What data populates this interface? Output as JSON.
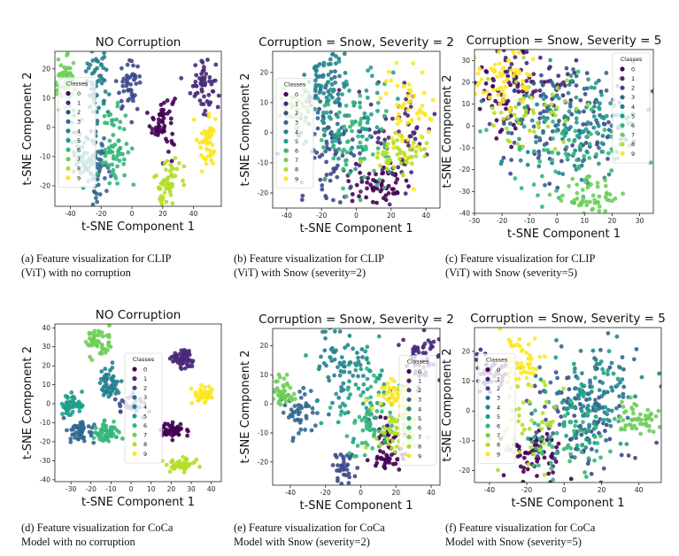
{
  "palette": [
    "#440154",
    "#482878",
    "#3e4989",
    "#31688e",
    "#26828e",
    "#1f9e89",
    "#35b779",
    "#6ece58",
    "#b5de2b",
    "#fde725"
  ],
  "legend_title": "Classes",
  "chart_data": [
    {
      "type": "scatter",
      "title": "NO Corruption",
      "xlabel": "t-SNE Component 1",
      "ylabel": "t-SNE Component 2",
      "xlim": [
        -50,
        58
      ],
      "ylim": [
        -27,
        26
      ],
      "xticks": [
        -40,
        -20,
        0,
        20,
        40
      ],
      "yticks": [
        -20,
        -10,
        0,
        10,
        20
      ],
      "legend_loc": "center-left",
      "clusters": [
        {
          "class": 0,
          "cx": 20,
          "cy": 2,
          "sx": 4,
          "sy": 5,
          "n": 55
        },
        {
          "class": 1,
          "cx": 46,
          "cy": 15,
          "sx": 4,
          "sy": 5,
          "n": 55
        },
        {
          "class": 2,
          "cx": -2,
          "cy": 14,
          "sx": 4,
          "sy": 4,
          "n": 45
        },
        {
          "class": 3,
          "cx": -22,
          "cy": -14,
          "sx": 4,
          "sy": 7,
          "n": 60
        },
        {
          "class": 4,
          "cx": -23,
          "cy": 15,
          "sx": 4,
          "sy": 6,
          "n": 60
        },
        {
          "class": 5,
          "cx": -33,
          "cy": -6,
          "sx": 4,
          "sy": 6,
          "n": 50
        },
        {
          "class": 6,
          "cx": -11,
          "cy": -7,
          "sx": 4,
          "sy": 7,
          "n": 60
        },
        {
          "class": 7,
          "cx": -43,
          "cy": 15,
          "sx": 4,
          "sy": 4,
          "n": 55
        },
        {
          "class": 8,
          "cx": 23,
          "cy": -19,
          "sx": 4,
          "sy": 5,
          "n": 55
        },
        {
          "class": 9,
          "cx": 49,
          "cy": -4,
          "sx": 3,
          "sy": 5,
          "n": 50
        }
      ],
      "caption": [
        "(a) Feature visualization for CLIP",
        "(ViT) with no corruption"
      ]
    },
    {
      "type": "scatter",
      "title": "Corruption = Snow, Severity = 2",
      "xlabel": "t-SNE Component 1",
      "ylabel": "t-SNE Component 2",
      "xlim": [
        -48,
        48
      ],
      "ylim": [
        -25,
        27
      ],
      "xticks": [
        -40,
        -20,
        0,
        20,
        40
      ],
      "yticks": [
        -20,
        -10,
        0,
        10,
        20
      ],
      "legend_loc": "center-left",
      "clusters": [
        {
          "class": 0,
          "cx": 15,
          "cy": -17,
          "sx": 8,
          "sy": 3,
          "n": 55
        },
        {
          "class": 1,
          "cx": 22,
          "cy": -2,
          "sx": 12,
          "sy": 9,
          "n": 70
        },
        {
          "class": 2,
          "cx": -14,
          "cy": -8,
          "sx": 10,
          "sy": 8,
          "n": 60
        },
        {
          "class": 3,
          "cx": -20,
          "cy": 6,
          "sx": 10,
          "sy": 8,
          "n": 60
        },
        {
          "class": 4,
          "cx": -18,
          "cy": 18,
          "sx": 6,
          "sy": 5,
          "n": 55
        },
        {
          "class": 5,
          "cx": -5,
          "cy": 6,
          "sx": 12,
          "sy": 9,
          "n": 65
        },
        {
          "class": 6,
          "cx": 0,
          "cy": -4,
          "sx": 12,
          "sy": 8,
          "n": 60
        },
        {
          "class": 7,
          "cx": -35,
          "cy": 8,
          "sx": 5,
          "sy": 3,
          "n": 35
        },
        {
          "class": 8,
          "cx": 25,
          "cy": -7,
          "sx": 8,
          "sy": 4,
          "n": 55
        },
        {
          "class": 9,
          "cx": 30,
          "cy": 7,
          "sx": 8,
          "sy": 7,
          "n": 60
        }
      ],
      "caption": [
        "(b) Feature visualization for CLIP",
        "(ViT) with Snow (severity=2)"
      ]
    },
    {
      "type": "scatter",
      "title": "Corruption = Snow, Severity = 5",
      "xlabel": "t-SNE Component 1",
      "ylabel": "t-SNE Component 2",
      "xlim": [
        -30,
        35
      ],
      "ylim": [
        -40,
        35
      ],
      "xticks": [
        -30,
        -20,
        -10,
        0,
        10,
        20,
        30
      ],
      "yticks": [
        -40,
        -30,
        -20,
        -10,
        0,
        10,
        20,
        30
      ],
      "legend_loc": "top-right",
      "clusters": [
        {
          "class": 0,
          "cx": -18,
          "cy": 15,
          "sx": 6,
          "sy": 10,
          "n": 60
        },
        {
          "class": 1,
          "cx": -5,
          "cy": 20,
          "sx": 10,
          "sy": 8,
          "n": 60
        },
        {
          "class": 2,
          "cx": 0,
          "cy": 0,
          "sx": 13,
          "sy": 13,
          "n": 70
        },
        {
          "class": 3,
          "cx": 10,
          "cy": 5,
          "sx": 12,
          "sy": 12,
          "n": 65
        },
        {
          "class": 4,
          "cx": 5,
          "cy": -5,
          "sx": 12,
          "sy": 12,
          "n": 65
        },
        {
          "class": 5,
          "cx": 10,
          "cy": 5,
          "sx": 10,
          "sy": 10,
          "n": 55
        },
        {
          "class": 6,
          "cx": 5,
          "cy": -10,
          "sx": 12,
          "sy": 11,
          "n": 65
        },
        {
          "class": 7,
          "cx": 12,
          "cy": -32,
          "sx": 5,
          "sy": 4,
          "n": 50
        },
        {
          "class": 8,
          "cx": -10,
          "cy": 5,
          "sx": 10,
          "sy": 8,
          "n": 50
        },
        {
          "class": 9,
          "cx": -20,
          "cy": 22,
          "sx": 6,
          "sy": 7,
          "n": 60
        }
      ],
      "caption": [
        "(c) Feature visualization for CLIP",
        "(ViT) with Snow (severity=5)"
      ]
    },
    {
      "type": "scatter",
      "title": "NO Corruption",
      "xlabel": "t-SNE Component 1",
      "ylabel": "t-SNE Component 2",
      "xlim": [
        -38,
        45
      ],
      "ylim": [
        -41,
        42
      ],
      "xticks": [
        -30,
        -20,
        -10,
        0,
        10,
        20,
        30,
        40
      ],
      "yticks": [
        -40,
        -30,
        -20,
        -10,
        0,
        10,
        20,
        30,
        40
      ],
      "legend_loc": "center",
      "clusters": [
        {
          "class": 0,
          "cx": 21,
          "cy": -14,
          "sx": 3,
          "sy": 2,
          "n": 55
        },
        {
          "class": 1,
          "cx": 26,
          "cy": 23,
          "sx": 3,
          "sy": 3,
          "n": 55
        },
        {
          "class": 2,
          "cx": 0,
          "cy": 0,
          "sx": 4,
          "sy": 3,
          "n": 30
        },
        {
          "class": 3,
          "cx": -25,
          "cy": -14,
          "sx": 3,
          "sy": 3,
          "n": 55
        },
        {
          "class": 4,
          "cx": -11,
          "cy": 11,
          "sx": 3,
          "sy": 4,
          "n": 55
        },
        {
          "class": 5,
          "cx": -30,
          "cy": 0,
          "sx": 3,
          "sy": 3,
          "n": 50
        },
        {
          "class": 6,
          "cx": -12,
          "cy": -15,
          "sx": 3,
          "sy": 3,
          "n": 55
        },
        {
          "class": 7,
          "cx": -17,
          "cy": 32,
          "sx": 3,
          "sy": 4,
          "n": 50
        },
        {
          "class": 8,
          "cx": 25,
          "cy": -32,
          "sx": 4,
          "sy": 2,
          "n": 55
        },
        {
          "class": 9,
          "cx": 36,
          "cy": 5,
          "sx": 3,
          "sy": 2,
          "n": 50
        }
      ],
      "caption": [
        "(d) Feature visualization for CoCa",
        "Model with no corruption"
      ]
    },
    {
      "type": "scatter",
      "title": "Corruption = Snow, Severity = 2",
      "xlabel": "t-SNE Component 1",
      "ylabel": "t-SNE Component 2",
      "xlim": [
        -50,
        45
      ],
      "ylim": [
        -28,
        26
      ],
      "xticks": [
        -40,
        -20,
        0,
        20,
        40
      ],
      "yticks": [
        -20,
        -10,
        0,
        10,
        20
      ],
      "legend_loc": "center-right",
      "clusters": [
        {
          "class": 0,
          "cx": 15,
          "cy": -15,
          "sx": 5,
          "sy": 5,
          "n": 55
        },
        {
          "class": 1,
          "cx": 35,
          "cy": 15,
          "sx": 5,
          "sy": 5,
          "n": 55
        },
        {
          "class": 2,
          "cx": -10,
          "cy": -22,
          "sx": 3,
          "sy": 3,
          "n": 35
        },
        {
          "class": 3,
          "cx": -35,
          "cy": -2,
          "sx": 5,
          "sy": 4,
          "n": 50
        },
        {
          "class": 4,
          "cx": -10,
          "cy": 15,
          "sx": 7,
          "sy": 7,
          "n": 60
        },
        {
          "class": 5,
          "cx": 0,
          "cy": 5,
          "sx": 10,
          "sy": 8,
          "n": 60
        },
        {
          "class": 6,
          "cx": 5,
          "cy": -5,
          "sx": 10,
          "sy": 7,
          "n": 60
        },
        {
          "class": 7,
          "cx": -45,
          "cy": 4,
          "sx": 4,
          "sy": 3,
          "n": 50
        },
        {
          "class": 8,
          "cx": 20,
          "cy": -8,
          "sx": 6,
          "sy": 4,
          "n": 55
        },
        {
          "class": 9,
          "cx": 20,
          "cy": 3,
          "sx": 6,
          "sy": 3,
          "n": 50
        }
      ],
      "caption": [
        "(e) Feature visualization for CoCa",
        "Model with Snow (severity=2)"
      ]
    },
    {
      "type": "scatter",
      "title": "Corruption = Snow, Severity = 5",
      "xlabel": "t-SNE Component 1",
      "ylabel": "t-SNE Component 2",
      "xlim": [
        -48,
        52
      ],
      "ylim": [
        -24,
        28
      ],
      "xticks": [
        -40,
        -20,
        0,
        20,
        40
      ],
      "yticks": [
        -20,
        -10,
        0,
        10,
        20
      ],
      "legend_loc": "center-left",
      "clusters": [
        {
          "class": 0,
          "cx": -15,
          "cy": -15,
          "sx": 8,
          "sy": 5,
          "n": 55
        },
        {
          "class": 1,
          "cx": -38,
          "cy": 14,
          "sx": 4,
          "sy": 4,
          "n": 45
        },
        {
          "class": 2,
          "cx": 5,
          "cy": -5,
          "sx": 14,
          "sy": 10,
          "n": 65
        },
        {
          "class": 3,
          "cx": 10,
          "cy": 5,
          "sx": 14,
          "sy": 9,
          "n": 65
        },
        {
          "class": 4,
          "cx": 20,
          "cy": 5,
          "sx": 12,
          "sy": 9,
          "n": 60
        },
        {
          "class": 5,
          "cx": 10,
          "cy": 0,
          "sx": 12,
          "sy": 8,
          "n": 60
        },
        {
          "class": 6,
          "cx": 0,
          "cy": -10,
          "sx": 12,
          "sy": 7,
          "n": 60
        },
        {
          "class": 7,
          "cx": 40,
          "cy": -3,
          "sx": 6,
          "sy": 3,
          "n": 50
        },
        {
          "class": 8,
          "cx": -20,
          "cy": -5,
          "sx": 10,
          "sy": 8,
          "n": 50
        },
        {
          "class": 9,
          "cx": -25,
          "cy": 18,
          "sx": 6,
          "sy": 5,
          "n": 55
        }
      ],
      "caption": [
        "(f) Feature visualization for CoCa",
        "Model with Snow (severity=5)"
      ]
    }
  ]
}
